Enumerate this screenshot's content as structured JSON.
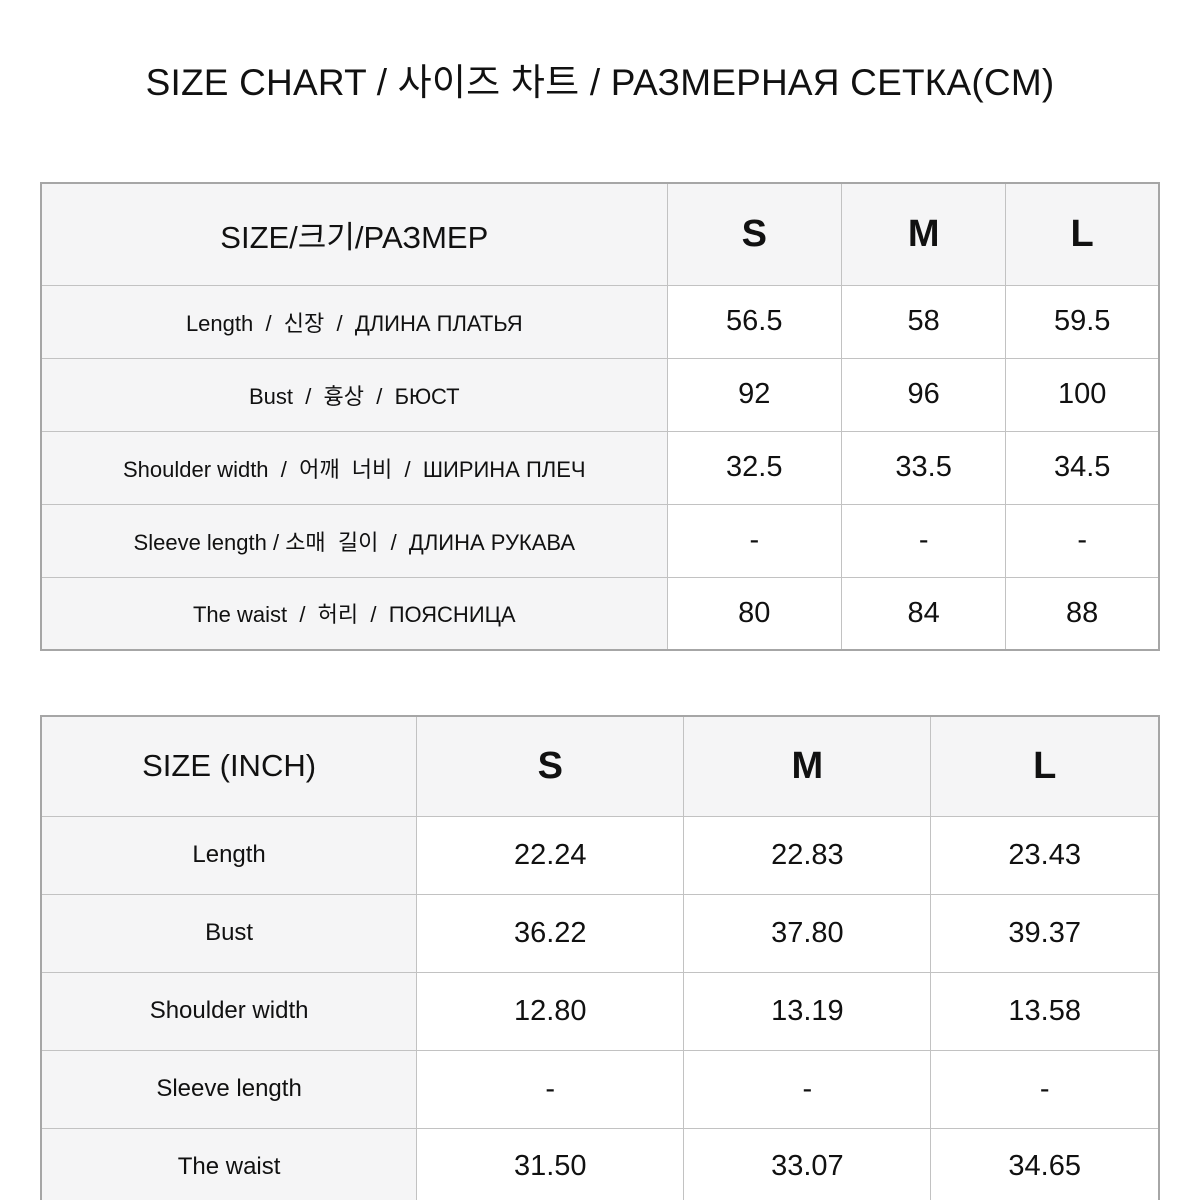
{
  "title": "SIZE CHART / 사이즈 차트 / РАЗМЕРНАЯ СЕТКА(CM)",
  "cm_table": {
    "header_label": "SIZE/크기/РАЗМЕР",
    "columns": [
      "S",
      "M",
      "L"
    ],
    "unit": "CM",
    "rows": [
      {
        "label": "Length  /  신장  /  ДЛИНА ПЛАТЬЯ",
        "values": [
          "56.5",
          "58",
          "59.5"
        ]
      },
      {
        "label": "Bust  /  흉상  /  БЮСТ",
        "values": [
          "92",
          "96",
          "100"
        ]
      },
      {
        "label": "Shoulder width  /  어깨  너비  /  ШИРИНА ПЛЕЧ",
        "values": [
          "32.5",
          "33.5",
          "34.5"
        ]
      },
      {
        "label": "Sleeve length / 소매  길이  /  ДЛИНА РУКАВА",
        "values": [
          "-",
          "-",
          "-"
        ]
      },
      {
        "label": "The waist  /  허리  /  ПОЯСНИЦА",
        "values": [
          "80",
          "84",
          "88"
        ]
      }
    ]
  },
  "inch_table": {
    "header_label": "SIZE (INCH)",
    "columns": [
      "S",
      "M",
      "L"
    ],
    "unit": "INCH",
    "rows": [
      {
        "label": "Length",
        "values": [
          "22.24",
          "22.83",
          "23.43"
        ]
      },
      {
        "label": "Bust",
        "values": [
          "36.22",
          "37.80",
          "39.37"
        ]
      },
      {
        "label": "Shoulder width",
        "values": [
          "12.80",
          "13.19",
          "13.58"
        ]
      },
      {
        "label": "Sleeve length",
        "values": [
          "-",
          "-",
          "-"
        ]
      },
      {
        "label": "The waist",
        "values": [
          "31.50",
          "33.07",
          "34.65"
        ]
      }
    ]
  }
}
